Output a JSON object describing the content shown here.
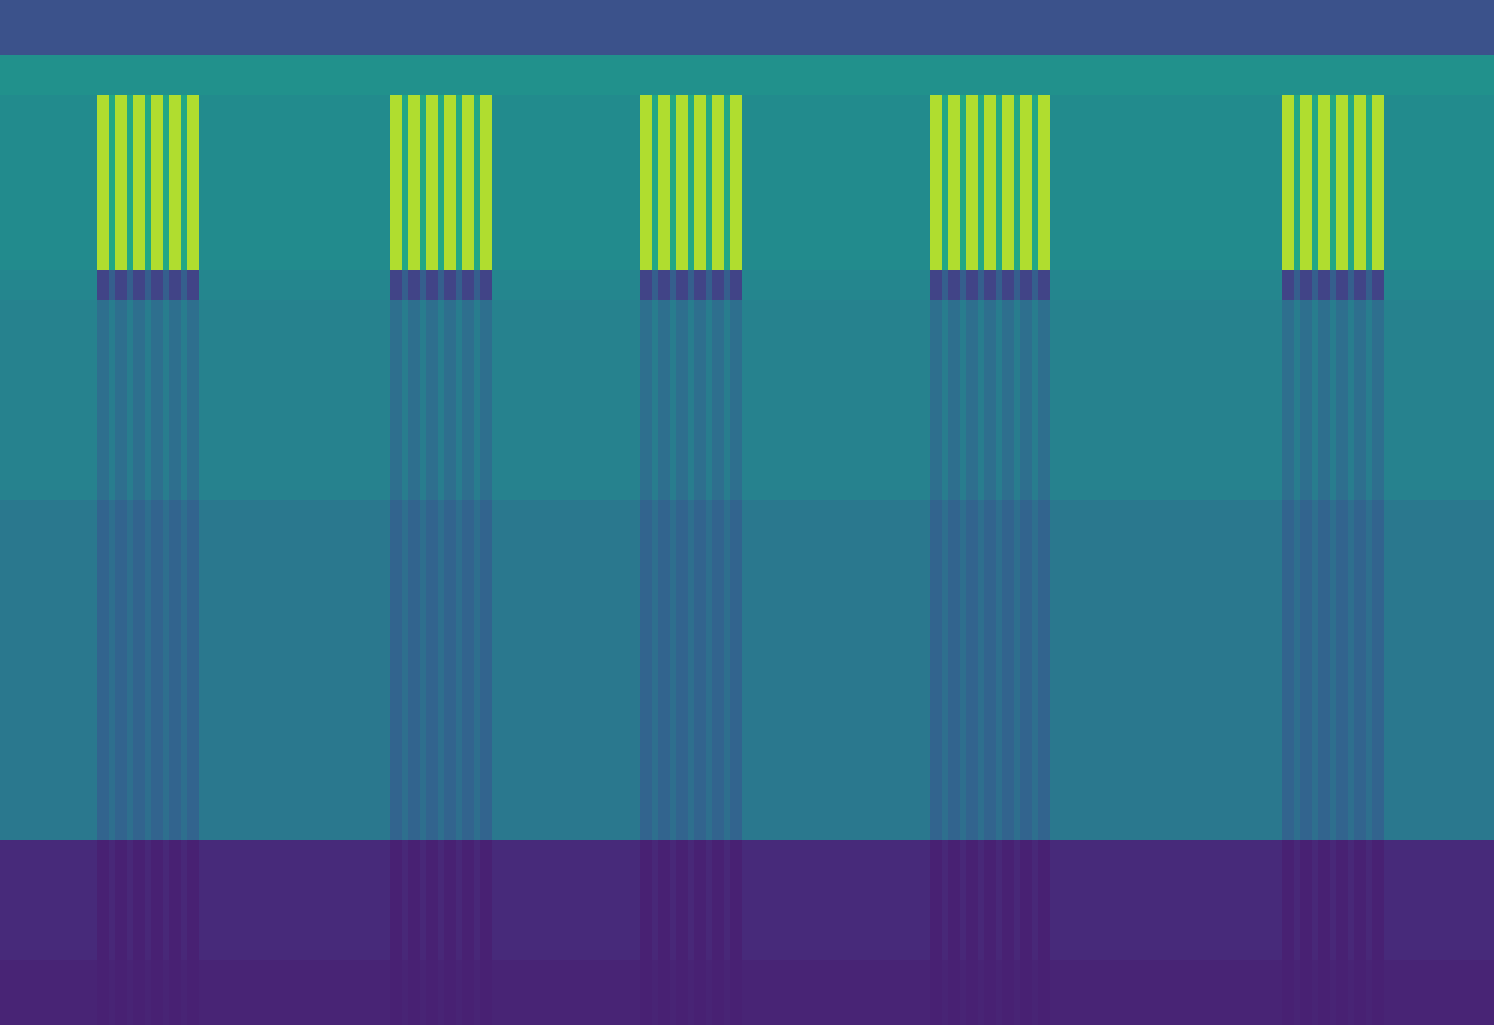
{
  "chart_data": {
    "type": "heatmap",
    "tick_labels": false,
    "xlim": [
      0,
      1494
    ],
    "ylim": [
      1025,
      0
    ],
    "color_range": [
      0,
      10
    ],
    "x_edges": [
      0,
      97,
      109,
      115,
      127,
      133,
      145,
      151,
      163,
      169,
      181,
      187,
      199,
      390,
      402,
      408,
      420,
      426,
      438,
      444,
      456,
      462,
      474,
      480,
      492,
      640,
      652,
      658,
      670,
      676,
      688,
      694,
      706,
      712,
      724,
      730,
      742,
      930,
      942,
      948,
      960,
      966,
      978,
      984,
      996,
      1002,
      1014,
      1020,
      1032,
      1038,
      1050,
      1282,
      1294,
      1300,
      1312,
      1318,
      1330,
      1336,
      1348,
      1354,
      1366,
      1372,
      1384,
      1494
    ],
    "y_edges": [
      0,
      55,
      95,
      270,
      300,
      500,
      840,
      960,
      1025
    ],
    "cells": [
      [
        2.5,
        2.5,
        2.5,
        2.5,
        2.5,
        2.5,
        2.5,
        2.5,
        2.5,
        2.5,
        2.5,
        2.5,
        2.5,
        2.5,
        2.5,
        2.5,
        2.5,
        2.5,
        2.5,
        2.5,
        2.5,
        2.5,
        2.5,
        2.5,
        2.5,
        2.5,
        2.5,
        2.5,
        2.5,
        2.5,
        2.5,
        2.5,
        2.5,
        2.5,
        2.5,
        2.5,
        2.5,
        2.5,
        2.5,
        2.5,
        2.5,
        2.5,
        2.5,
        2.5,
        2.5,
        2.5,
        2.5,
        2.5,
        2.5,
        2.5,
        2.5,
        2.5,
        2.5,
        2.5,
        2.5,
        2.5,
        2.5,
        2.5,
        2.5,
        2.5,
        2.5,
        2.5,
        2.5
      ],
      [
        5.0,
        5.0,
        5.0,
        5.0,
        5.0,
        5.0,
        5.0,
        5.0,
        5.0,
        5.0,
        5.0,
        5.0,
        5.0,
        5.0,
        5.0,
        5.0,
        5.0,
        5.0,
        5.0,
        5.0,
        5.0,
        5.0,
        5.0,
        5.0,
        5.0,
        5.0,
        5.0,
        5.0,
        5.0,
        5.0,
        5.0,
        5.0,
        5.0,
        5.0,
        5.0,
        5.0,
        5.0,
        5.0,
        5.0,
        5.0,
        5.0,
        5.0,
        5.0,
        5.0,
        5.0,
        5.0,
        5.0,
        5.0,
        5.0,
        5.0,
        5.0,
        5.0,
        5.0,
        5.0,
        5.0,
        5.0,
        5.0,
        5.0,
        5.0,
        5.0,
        5.0,
        5.0,
        5.0
      ],
      [
        4.8,
        8.8,
        6.0,
        8.8,
        6.0,
        8.8,
        6.0,
        8.8,
        6.0,
        8.8,
        6.0,
        8.8,
        4.8,
        8.8,
        6.0,
        8.8,
        6.0,
        8.8,
        6.0,
        8.8,
        6.0,
        8.8,
        6.0,
        8.8,
        4.8,
        8.8,
        6.0,
        8.8,
        6.0,
        8.8,
        6.0,
        8.8,
        6.0,
        8.8,
        6.0,
        8.8,
        4.8,
        8.8,
        6.0,
        8.8,
        6.0,
        8.8,
        6.0,
        8.8,
        6.0,
        8.8,
        6.0,
        8.8,
        6.0,
        8.8,
        4.8,
        8.8,
        6.0,
        8.8,
        6.0,
        8.8,
        6.0,
        8.8,
        6.0,
        8.8,
        6.0,
        8.8,
        4.8
      ],
      [
        4.6,
        2.0,
        3.0,
        2.0,
        3.0,
        2.0,
        3.0,
        2.0,
        3.0,
        2.0,
        3.0,
        2.0,
        4.6,
        2.0,
        3.0,
        2.0,
        3.0,
        2.0,
        3.0,
        2.0,
        3.0,
        2.0,
        3.0,
        2.0,
        4.6,
        2.0,
        3.0,
        2.0,
        3.0,
        2.0,
        3.0,
        2.0,
        3.0,
        2.0,
        3.0,
        2.0,
        4.6,
        2.0,
        3.0,
        2.0,
        3.0,
        2.0,
        3.0,
        2.0,
        3.0,
        2.0,
        3.0,
        2.0,
        3.0,
        2.0,
        4.6,
        2.0,
        3.0,
        2.0,
        3.0,
        2.0,
        3.0,
        2.0,
        3.0,
        2.0,
        3.0,
        2.0,
        4.6
      ],
      [
        4.4,
        3.6,
        4.2,
        3.6,
        4.2,
        3.6,
        4.2,
        3.6,
        4.2,
        3.6,
        4.2,
        3.6,
        4.4,
        3.6,
        4.2,
        3.6,
        4.2,
        3.6,
        4.2,
        3.6,
        4.2,
        3.6,
        4.2,
        3.6,
        4.4,
        3.6,
        4.2,
        3.6,
        4.2,
        3.6,
        4.2,
        3.6,
        4.2,
        3.6,
        4.2,
        3.6,
        4.4,
        3.6,
        4.2,
        3.6,
        4.2,
        3.6,
        4.2,
        3.6,
        4.2,
        3.6,
        4.2,
        3.6,
        4.2,
        3.6,
        4.4,
        3.6,
        4.2,
        3.6,
        4.2,
        3.6,
        4.2,
        3.6,
        4.2,
        3.6,
        4.2,
        3.6,
        4.4
      ],
      [
        4.0,
        3.2,
        3.6,
        3.2,
        3.6,
        3.2,
        3.6,
        3.2,
        3.6,
        3.2,
        3.6,
        3.2,
        4.0,
        3.2,
        3.6,
        3.2,
        3.6,
        3.2,
        3.6,
        3.2,
        3.6,
        3.2,
        3.6,
        3.2,
        4.0,
        3.2,
        3.6,
        3.2,
        3.6,
        3.2,
        3.6,
        3.2,
        3.6,
        3.2,
        3.6,
        3.2,
        4.0,
        3.2,
        3.6,
        3.2,
        3.6,
        3.2,
        3.6,
        3.2,
        3.6,
        3.2,
        3.6,
        3.2,
        3.6,
        3.2,
        4.0,
        3.2,
        3.6,
        3.2,
        3.6,
        3.2,
        3.6,
        3.2,
        3.6,
        3.2,
        3.6,
        3.2,
        4.0
      ],
      [
        1.2,
        0.9,
        1.1,
        0.9,
        1.1,
        0.9,
        1.1,
        0.9,
        1.1,
        0.9,
        1.1,
        0.9,
        1.2,
        0.9,
        1.1,
        0.9,
        1.1,
        0.9,
        1.1,
        0.9,
        1.1,
        0.9,
        1.1,
        0.9,
        1.2,
        0.9,
        1.1,
        0.9,
        1.1,
        0.9,
        1.1,
        0.9,
        1.1,
        0.9,
        1.1,
        0.9,
        1.2,
        0.9,
        1.1,
        0.9,
        1.1,
        0.9,
        1.1,
        0.9,
        1.1,
        0.9,
        1.1,
        0.9,
        1.1,
        0.9,
        1.2,
        0.9,
        1.1,
        0.9,
        1.1,
        0.9,
        1.1,
        0.9,
        1.1,
        0.9,
        1.1,
        0.9,
        1.2
      ],
      [
        1.0,
        0.9,
        1.0,
        0.9,
        1.0,
        0.9,
        1.0,
        0.9,
        1.0,
        0.9,
        1.0,
        0.9,
        1.0,
        0.9,
        1.0,
        0.9,
        1.0,
        0.9,
        1.0,
        0.9,
        1.0,
        0.9,
        1.0,
        0.9,
        1.0,
        0.9,
        1.0,
        0.9,
        1.0,
        0.9,
        1.0,
        0.9,
        1.0,
        0.9,
        1.0,
        0.9,
        1.0,
        0.9,
        1.0,
        0.9,
        1.0,
        0.9,
        1.0,
        0.9,
        1.0,
        0.9,
        1.0,
        0.9,
        1.0,
        0.9,
        1.0,
        0.9,
        1.0,
        0.9,
        1.0,
        0.9,
        1.0,
        0.9,
        1.0,
        0.9,
        1.0,
        0.9,
        1.0
      ]
    ]
  }
}
